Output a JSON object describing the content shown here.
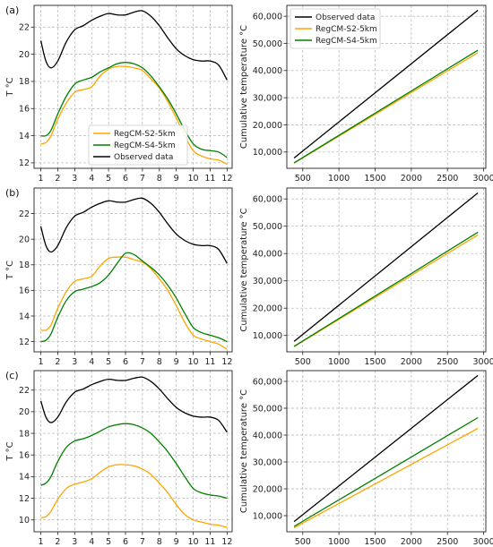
{
  "colors": {
    "observed": "#000000",
    "s2": "#ffa500",
    "s4": "#008000"
  },
  "chart_data": [
    {
      "panel_label": "(a)",
      "type": "line",
      "xlabel": "",
      "ylabel": "T °C",
      "xlim": [
        0.6,
        12.3
      ],
      "ylim": [
        11.6,
        23.6
      ],
      "xticks": [
        1,
        2,
        3,
        4,
        5,
        6,
        7,
        8,
        9,
        10,
        11,
        12
      ],
      "yticks": [
        12,
        14,
        16,
        18,
        20,
        22
      ],
      "grid": true,
      "legend": "center",
      "legend_entries": [
        "RegCM-S2-5km",
        "RegCM-S4-5km",
        "Observed data"
      ],
      "series": [
        {
          "name": "RegCM-S2-5km",
          "color_key": "s2",
          "x": [
            1,
            1.3,
            1.6,
            2,
            2.5,
            3,
            3.5,
            4,
            4.5,
            5,
            5.5,
            6,
            6.5,
            7,
            7.5,
            8,
            8.5,
            9,
            9.5,
            10,
            10.5,
            11,
            11.5,
            12
          ],
          "y": [
            13.4,
            13.5,
            14.0,
            15.2,
            16.4,
            17.2,
            17.4,
            17.6,
            18.4,
            18.9,
            19.1,
            19.1,
            19.0,
            18.8,
            18.2,
            17.5,
            16.5,
            15.3,
            14.0,
            12.9,
            12.5,
            12.3,
            12.2,
            11.9
          ]
        },
        {
          "name": "RegCM-S4-5km",
          "color_key": "s4",
          "x": [
            1,
            1.3,
            1.6,
            2,
            2.5,
            3,
            3.5,
            4,
            4.5,
            5,
            5.5,
            6,
            6.5,
            7,
            7.5,
            8,
            8.5,
            9,
            9.5,
            10,
            10.5,
            11,
            11.5,
            12
          ],
          "y": [
            14.0,
            14.0,
            14.4,
            15.6,
            16.9,
            17.8,
            18.1,
            18.3,
            18.7,
            19.0,
            19.3,
            19.4,
            19.3,
            19.0,
            18.4,
            17.6,
            16.7,
            15.6,
            14.4,
            13.4,
            13.0,
            12.9,
            12.8,
            12.4
          ]
        },
        {
          "name": "Observed data",
          "color_key": "observed",
          "x": [
            1,
            1.3,
            1.6,
            2,
            2.5,
            3,
            3.5,
            4,
            4.5,
            5,
            5.5,
            6,
            6.5,
            7,
            7.5,
            8,
            8.5,
            9,
            9.5,
            10,
            10.5,
            11,
            11.5,
            12
          ],
          "y": [
            21.0,
            19.5,
            19.0,
            19.5,
            20.9,
            21.8,
            22.1,
            22.5,
            22.8,
            23.0,
            22.9,
            22.9,
            23.1,
            23.2,
            22.8,
            22.1,
            21.2,
            20.4,
            19.9,
            19.6,
            19.5,
            19.5,
            19.2,
            18.1
          ]
        }
      ]
    },
    {
      "panel_label": "",
      "type": "line",
      "xlabel": "",
      "ylabel": "Cumulative temperature °C",
      "xlim": [
        280,
        3030
      ],
      "ylim": [
        4000,
        64000
      ],
      "xticks": [
        500,
        1000,
        1500,
        2000,
        2500,
        3000
      ],
      "yticks": [
        10000,
        20000,
        30000,
        40000,
        50000,
        60000
      ],
      "ytick_labels": [
        "10,000",
        "20,000",
        "30,000",
        "40,000",
        "50,000",
        "60,000"
      ],
      "grid": true,
      "legend": "top-left",
      "legend_entries": [
        "Observed data",
        "RegCM-S2-5km",
        "RegCM-S4-5km"
      ],
      "series": [
        {
          "name": "Observed data",
          "color_key": "observed",
          "x": [
            380,
            2920
          ],
          "y": [
            7800,
            62200
          ]
        },
        {
          "name": "RegCM-S2-5km",
          "color_key": "s2",
          "x": [
            380,
            2920
          ],
          "y": [
            5900,
            46600
          ]
        },
        {
          "name": "RegCM-S4-5km",
          "color_key": "s4",
          "x": [
            380,
            2920
          ],
          "y": [
            6000,
            47500
          ]
        }
      ]
    },
    {
      "panel_label": "(b)",
      "type": "line",
      "xlabel": "",
      "ylabel": "T °C",
      "xlim": [
        0.6,
        12.3
      ],
      "ylim": [
        11.2,
        24.0
      ],
      "xticks": [
        1,
        2,
        3,
        4,
        5,
        6,
        7,
        8,
        9,
        10,
        11,
        12
      ],
      "yticks": [
        12,
        14,
        16,
        18,
        20,
        22
      ],
      "grid": true,
      "legend": "none",
      "series": [
        {
          "name": "",
          "color_key": "s2",
          "x": [
            1,
            1.3,
            1.6,
            2,
            2.5,
            3,
            3.5,
            4,
            4.5,
            5,
            5.5,
            6,
            6.5,
            7,
            7.5,
            8,
            8.5,
            9,
            9.5,
            10,
            10.5,
            11,
            11.5,
            12
          ],
          "y": [
            12.9,
            12.9,
            13.3,
            14.6,
            15.9,
            16.7,
            16.9,
            17.1,
            17.9,
            18.5,
            18.6,
            18.6,
            18.4,
            18.2,
            17.7,
            16.9,
            16.0,
            14.8,
            13.5,
            12.5,
            12.2,
            12.0,
            11.8,
            11.4
          ]
        },
        {
          "name": "",
          "color_key": "s4",
          "x": [
            1,
            1.3,
            1.6,
            2,
            2.5,
            3,
            3.5,
            4,
            4.5,
            5,
            5.5,
            6,
            6.5,
            7,
            7.5,
            8,
            8.5,
            9,
            9.5,
            10,
            10.5,
            11,
            11.5,
            12
          ],
          "y": [
            12.0,
            12.1,
            12.6,
            13.9,
            15.2,
            15.9,
            16.1,
            16.3,
            16.6,
            17.2,
            18.1,
            18.9,
            18.8,
            18.3,
            17.8,
            17.2,
            16.4,
            15.4,
            14.2,
            13.1,
            12.7,
            12.5,
            12.3,
            12.0
          ]
        },
        {
          "name": "",
          "color_key": "observed",
          "x": [
            1,
            1.3,
            1.6,
            2,
            2.5,
            3,
            3.5,
            4,
            4.5,
            5,
            5.5,
            6,
            6.5,
            7,
            7.5,
            8,
            8.5,
            9,
            9.5,
            10,
            10.5,
            11,
            11.5,
            12
          ],
          "y": [
            21.0,
            19.5,
            19.0,
            19.5,
            20.9,
            21.8,
            22.1,
            22.5,
            22.8,
            23.0,
            22.9,
            22.9,
            23.1,
            23.2,
            22.8,
            22.1,
            21.2,
            20.4,
            19.9,
            19.6,
            19.5,
            19.5,
            19.2,
            18.1
          ]
        }
      ]
    },
    {
      "panel_label": "",
      "type": "line",
      "xlabel": "",
      "ylabel": "Cumulative temperature °C",
      "xlim": [
        280,
        3030
      ],
      "ylim": [
        4000,
        64000
      ],
      "xticks": [
        500,
        1000,
        1500,
        2000,
        2500,
        3000
      ],
      "yticks": [
        10000,
        20000,
        30000,
        40000,
        50000,
        60000
      ],
      "ytick_labels": [
        "10,000",
        "20,000",
        "30,000",
        "40,000",
        "50,000",
        "60,000"
      ],
      "grid": true,
      "legend": "none",
      "series": [
        {
          "name": "",
          "color_key": "observed",
          "x": [
            380,
            2920
          ],
          "y": [
            7800,
            62200
          ]
        },
        {
          "name": "",
          "color_key": "s2",
          "x": [
            380,
            2920
          ],
          "y": [
            5900,
            46800
          ]
        },
        {
          "name": "",
          "color_key": "s4",
          "x": [
            380,
            2920
          ],
          "y": [
            6000,
            47800
          ]
        }
      ]
    },
    {
      "panel_label": "(c)",
      "type": "line",
      "xlabel": "",
      "ylabel": "T °C",
      "xlim": [
        0.6,
        12.3
      ],
      "ylim": [
        8.9,
        23.8
      ],
      "xticks": [
        1,
        2,
        3,
        4,
        5,
        6,
        7,
        8,
        9,
        10,
        11,
        12
      ],
      "yticks": [
        10,
        12,
        14,
        16,
        18,
        20,
        22
      ],
      "grid": true,
      "legend": "none",
      "series": [
        {
          "name": "",
          "color_key": "s2",
          "x": [
            1,
            1.3,
            1.6,
            2,
            2.5,
            3,
            3.5,
            4,
            4.5,
            5,
            5.5,
            6,
            6.5,
            7,
            7.5,
            8,
            8.5,
            9,
            9.5,
            10,
            10.5,
            11,
            11.5,
            12
          ],
          "y": [
            10.2,
            10.3,
            10.8,
            11.9,
            12.9,
            13.3,
            13.5,
            13.8,
            14.4,
            14.9,
            15.1,
            15.1,
            15.0,
            14.7,
            14.2,
            13.4,
            12.5,
            11.4,
            10.5,
            10.0,
            9.8,
            9.6,
            9.5,
            9.3
          ]
        },
        {
          "name": "",
          "color_key": "s4",
          "x": [
            1,
            1.3,
            1.6,
            2,
            2.5,
            3,
            3.5,
            4,
            4.5,
            5,
            5.5,
            6,
            6.5,
            7,
            7.5,
            8,
            8.5,
            9,
            9.5,
            10,
            10.5,
            11,
            11.5,
            12
          ],
          "y": [
            13.2,
            13.4,
            14.0,
            15.4,
            16.7,
            17.3,
            17.5,
            17.8,
            18.2,
            18.6,
            18.8,
            18.9,
            18.8,
            18.5,
            18.0,
            17.2,
            16.3,
            15.2,
            14.0,
            12.9,
            12.5,
            12.3,
            12.2,
            12.0
          ]
        },
        {
          "name": "",
          "color_key": "observed",
          "x": [
            1,
            1.3,
            1.6,
            2,
            2.5,
            3,
            3.5,
            4,
            4.5,
            5,
            5.5,
            6,
            6.5,
            7,
            7.5,
            8,
            8.5,
            9,
            9.5,
            10,
            10.5,
            11,
            11.5,
            12
          ],
          "y": [
            21.0,
            19.5,
            19.0,
            19.5,
            20.9,
            21.8,
            22.1,
            22.5,
            22.8,
            23.0,
            22.9,
            22.9,
            23.1,
            23.2,
            22.8,
            22.1,
            21.2,
            20.4,
            19.9,
            19.6,
            19.5,
            19.5,
            19.2,
            18.1
          ]
        }
      ]
    },
    {
      "panel_label": "",
      "type": "line",
      "xlabel": "",
      "ylabel": "Cumulative temperature °C",
      "xlim": [
        280,
        3030
      ],
      "ylim": [
        4000,
        64000
      ],
      "xticks": [
        500,
        1000,
        1500,
        2000,
        2500,
        3000
      ],
      "yticks": [
        10000,
        20000,
        30000,
        40000,
        50000,
        60000
      ],
      "ytick_labels": [
        "10,000",
        "20,000",
        "30,000",
        "40,000",
        "50,000",
        "60,000"
      ],
      "grid": true,
      "legend": "none",
      "series": [
        {
          "name": "",
          "color_key": "observed",
          "x": [
            380,
            2920
          ],
          "y": [
            7800,
            62200
          ]
        },
        {
          "name": "",
          "color_key": "s2",
          "x": [
            380,
            2920
          ],
          "y": [
            5500,
            42500
          ]
        },
        {
          "name": "",
          "color_key": "s4",
          "x": [
            380,
            2920
          ],
          "y": [
            6000,
            46500
          ]
        }
      ]
    }
  ]
}
